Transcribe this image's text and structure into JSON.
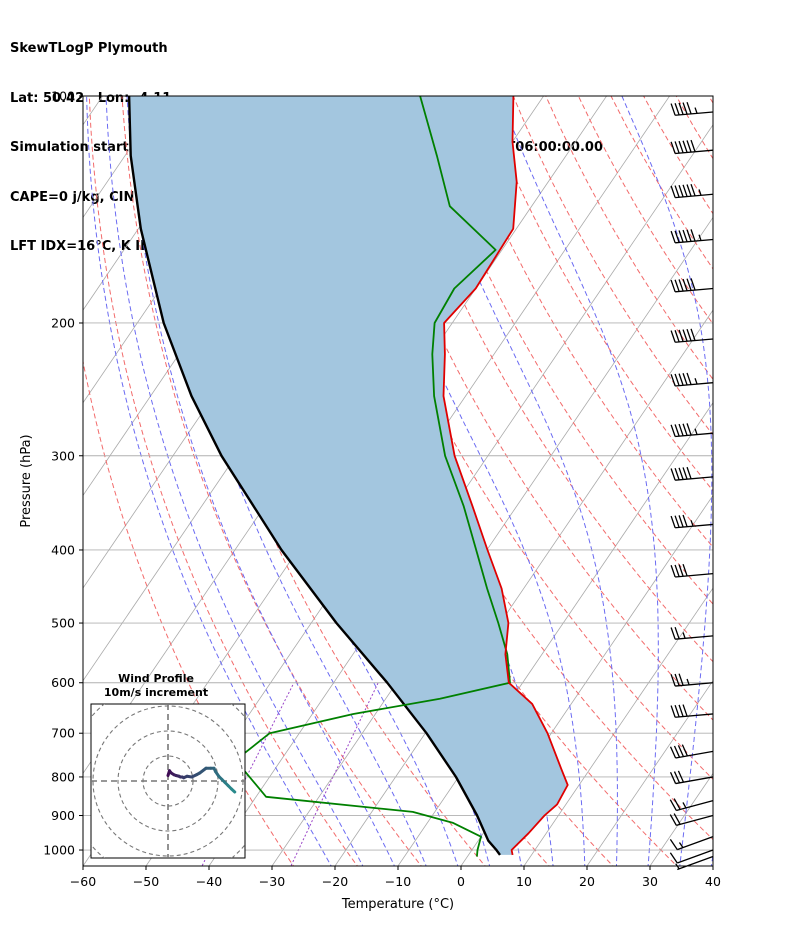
{
  "header": {
    "lines": [
      "SkewTLogP Plymouth",
      "Lat: 50.42   Lon: -4.11",
      "Simulation start time: 2024-01-27_00:00:00, Valid time: 2024-01-27T06:00:00.00",
      "CAPE=0 j/kg, CIN=0 j/kg, LCL=972 hPa, LFC=nan hPa, EQ=nan hPa",
      "LFT IDX=16°C, K IDX=-33°C, TOTAL TOTS=19°C, SHWTR_IDX=16°C"
    ]
  },
  "colors": {
    "temperature": "#e00000",
    "dewpoint": "#008000",
    "parcel": "#000000",
    "shade": "#a3c6df",
    "dry_adiabat": "#f26b6b",
    "moist_adiabat": "#6b6bf2",
    "mixing_ratio": "#9a44c8",
    "isotherm": "#aaaaaa",
    "hodo_start": "#3f0b54",
    "hodo_end": "#2a8a8c"
  },
  "chart_data": {
    "type": "skew-T log-P",
    "xlabel": "Temperature (°C)",
    "ylabel": "Pressure (hPa)",
    "xlim": [
      -60,
      40
    ],
    "ylim": [
      1050,
      100
    ],
    "x_ticks": [
      "−60",
      "−50",
      "−40",
      "−30",
      "−20",
      "−10",
      "0",
      "10",
      "20",
      "30",
      "40"
    ],
    "y_ticks": [
      "1000",
      "900",
      "800",
      "700",
      "600",
      "500",
      "400",
      "300",
      "200",
      "100"
    ],
    "grid": true,
    "series": [
      {
        "id": "temperature",
        "pressure_hpa": [
          1015,
          1000,
          950,
          900,
          870,
          820,
          780,
          700,
          640,
          600,
          550,
          500,
          450,
          400,
          350,
          300,
          250,
          220,
          200,
          180,
          150,
          130,
          115,
          100
        ],
        "temperature_c": [
          7.0,
          6.3,
          7.2,
          7.8,
          8.6,
          8.2,
          5.4,
          -0.6,
          -6.2,
          -12.2,
          -15.8,
          -18.7,
          -23.5,
          -29.9,
          -37.0,
          -45.3,
          -53.5,
          -57.8,
          -61.3,
          -60.0,
          -60.5,
          -65.0,
          -70.0,
          -74.8
        ]
      },
      {
        "id": "dewpoint",
        "pressure_hpa": [
          1020,
          1000,
          960,
          920,
          890,
          850,
          760,
          700,
          660,
          630,
          600,
          550,
          500,
          450,
          400,
          350,
          300,
          250,
          220,
          200,
          180,
          160,
          140,
          120,
          100
        ],
        "temperature_c": [
          1.5,
          0.9,
          0.0,
          -6.0,
          -13.5,
          -38.4,
          -47.2,
          -44.7,
          -33.5,
          -21.4,
          -12.0,
          -15.5,
          -20.3,
          -25.8,
          -31.7,
          -38.4,
          -46.8,
          -55.0,
          -59.8,
          -62.8,
          -63.4,
          -61.0,
          -73.0,
          -80.5,
          -89.6
        ]
      },
      {
        "id": "parcel",
        "pressure_hpa": [
          1015,
          1000,
          972,
          900,
          800,
          700,
          600,
          500,
          400,
          300,
          250,
          200,
          150,
          120,
          100
        ],
        "temperature_c": [
          5.0,
          3.9,
          1.6,
          -2.9,
          -10.4,
          -19.8,
          -31.5,
          -46.0,
          -62.6,
          -82.3,
          -93.5,
          -105.8,
          -119.6,
          -129.1,
          -135.8
        ]
      }
    ],
    "wind_barbs": {
      "units": "knots",
      "pressure_hpa": [
        1020,
        1000,
        960,
        900,
        860,
        800,
        740,
        660,
        600,
        520,
        430,
        370,
        320,
        280,
        240,
        210,
        180,
        155,
        135,
        118,
        105
      ],
      "speed": [
        5,
        10,
        15,
        20,
        25,
        30,
        40,
        40,
        35,
        25,
        40,
        45,
        50,
        55,
        55,
        60,
        60,
        65,
        65,
        60,
        55
      ],
      "direction_deg": [
        250,
        250,
        250,
        255,
        255,
        260,
        260,
        265,
        265,
        265,
        265,
        265,
        265,
        265,
        265,
        265,
        265,
        265,
        265,
        265,
        265
      ]
    },
    "hodograph": {
      "title": "Wind Profile",
      "subtitle": "10m/s increment",
      "ring_step_ms": 10,
      "u_ms": [
        0.0,
        0.6,
        1.3,
        2.4,
        3.2,
        4.4,
        5.0,
        5.7,
        6.3,
        7.6,
        9.5,
        11.4,
        12.7,
        15.2,
        17.1,
        18.4,
        19.0,
        20.3,
        21.6,
        22.8,
        24.1,
        25.4,
        26.7
      ],
      "v_ms": [
        2.2,
        4.1,
        3.2,
        2.5,
        2.2,
        1.9,
        1.6,
        1.6,
        1.3,
        1.9,
        1.6,
        2.5,
        3.2,
        5.1,
        5.1,
        5.1,
        3.8,
        1.9,
        0.6,
        -0.6,
        -1.9,
        -3.2,
        -4.4
      ]
    }
  }
}
